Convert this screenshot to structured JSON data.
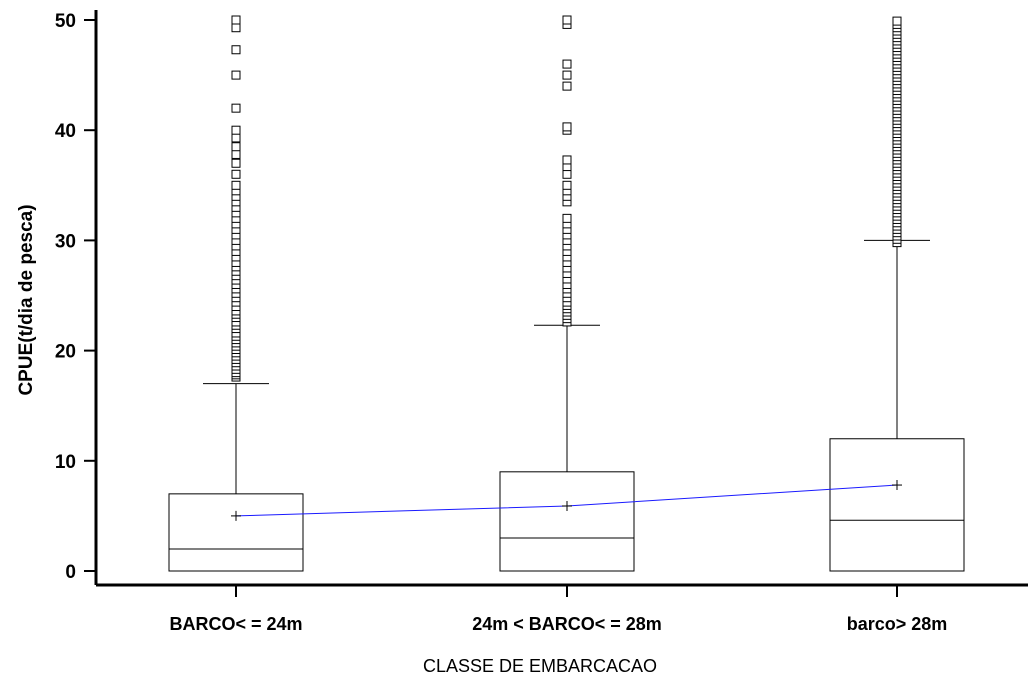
{
  "chart_data": {
    "type": "box",
    "xlabel": "CLASSE DE EMBARCACAO",
    "ylabel": "CPUE(t/dia de pesca)",
    "ylim": [
      0,
      50
    ],
    "yticks": [
      0,
      10,
      20,
      30,
      40,
      50
    ],
    "grid": false,
    "legend": "none",
    "categories": [
      "BARCO< = 24m",
      "24m  < BARCO< = 28m",
      "barco> 28m"
    ],
    "boxes": [
      {
        "min": 0,
        "q1": 0,
        "median": 2.0,
        "q3": 7.0,
        "whisker_high": 17.0,
        "mean": 5.0,
        "outliers": [
          17.6,
          17.8,
          18.0,
          18.3,
          18.6,
          18.9,
          19.2,
          19.5,
          19.8,
          20.1,
          20.4,
          20.7,
          21.0,
          21.3,
          21.6,
          22.0,
          22.3,
          22.6,
          23.0,
          23.3,
          23.6,
          24.0,
          24.4,
          24.8,
          25.2,
          25.6,
          26.0,
          26.4,
          26.8,
          27.2,
          27.6,
          28.0,
          28.5,
          29.0,
          29.5,
          30.0,
          30.5,
          31.0,
          31.5,
          32.0,
          32.5,
          33.0,
          33.5,
          34.0,
          34.5,
          35.0,
          36.0,
          37.0,
          37.8,
          38.5,
          39.3,
          40.0,
          42.0,
          45.0,
          47.3,
          49.3,
          50.0
        ]
      },
      {
        "min": 0,
        "q1": 0,
        "median": 3.0,
        "q3": 9.0,
        "whisker_high": 22.3,
        "mean": 5.9,
        "outliers": [
          22.6,
          22.9,
          23.2,
          23.5,
          23.8,
          24.1,
          24.4,
          24.8,
          25.2,
          25.6,
          26.0,
          26.5,
          27.0,
          27.5,
          28.0,
          28.5,
          29.0,
          29.5,
          30.0,
          30.5,
          31.0,
          31.5,
          32.0,
          33.5,
          34.0,
          34.5,
          35.0,
          36.0,
          36.7,
          37.3,
          40.0,
          40.3,
          44.0,
          45.0,
          46.0,
          49.6,
          50.0
        ]
      },
      {
        "min": 0,
        "q1": 0,
        "median": 4.6,
        "q3": 12.0,
        "whisker_high": 30.0,
        "mean": 7.8,
        "outliers": [
          29.8,
          30.1,
          30.4,
          30.7,
          31.0,
          31.3,
          31.6,
          31.9,
          32.2,
          32.5,
          32.8,
          33.1,
          33.4,
          33.7,
          34.0,
          34.3,
          34.6,
          34.9,
          35.2,
          35.5,
          35.8,
          36.1,
          36.4,
          36.7,
          37.0,
          37.3,
          37.6,
          37.9,
          38.2,
          38.5,
          38.8,
          39.1,
          39.4,
          39.7,
          40.0,
          40.3,
          40.6,
          40.9,
          41.2,
          41.5,
          41.8,
          42.1,
          42.4,
          42.7,
          43.0,
          43.3,
          43.6,
          43.9,
          44.2,
          44.5,
          44.8,
          45.1,
          45.4,
          45.7,
          46.0,
          46.3,
          46.6,
          46.9,
          47.2,
          47.5,
          47.8,
          48.1,
          48.4,
          48.7,
          49.0,
          49.3,
          49.6,
          49.9
        ]
      }
    ],
    "mean_line_color": "#1a1aff"
  }
}
